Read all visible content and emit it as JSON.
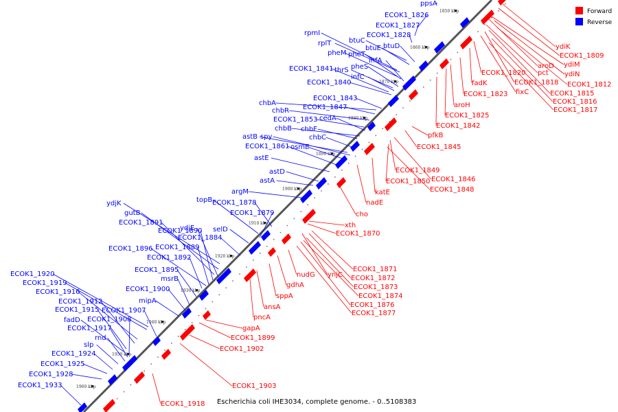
{
  "caption": "Escherichia coli IHE3034, complete genome. - 0..5108383",
  "legend": [
    {
      "label": "Forward",
      "color": "#ff0000"
    },
    {
      "label": "Reverse",
      "color": "#0000ff"
    }
  ],
  "colors": {
    "forward": "#ff0000",
    "reverse": "#0000ff",
    "backbone": "#888888"
  },
  "ticks": [
    "1850 kbp",
    "1860 kbp",
    "1870 kbp",
    "1880 kbp",
    "1890 kbp",
    "1900 kbp",
    "1910 kbp",
    "1920 kbp",
    "1930 kbp",
    "1940 kbp",
    "1950 kbp",
    "1960 kbp"
  ],
  "reverse_genes": [
    "ppsA",
    "ECOK1_1826",
    "ECOK1_1827",
    "ECOK1_1828",
    "btuC",
    "rpmI",
    "rplT",
    "btuE",
    "btuD",
    "pheM",
    "pheT",
    "ihfA",
    "pheS",
    "thrS",
    "ECOK1_1841",
    "infC",
    "ECOK1_1840",
    "chbA",
    "ECOK1_1843",
    "chbR",
    "ECOK1_1847",
    "ECOK1_1853",
    "cedA",
    "chbB",
    "chbF",
    "astB",
    "spy",
    "chbC",
    "ECOK1_1861",
    "osmE",
    "astE",
    "astD",
    "astA",
    "argM",
    "topB",
    "ECOK1_1878",
    "ydjK",
    "ECOK1_1879",
    "gutB",
    "ECOK1_1891",
    "selD",
    "ydjE",
    "ECOK1_1890",
    "ECOK1_1884",
    "ECOK1_1896",
    "ECOK1_1889",
    "ECOK1_1892",
    "ECOK1_1895",
    "ECOK1_1920",
    "msrB",
    "ECOK1_1919",
    "ECOK1_1900",
    "ECOK1_1916",
    "mipA",
    "ECOK1_1912",
    "ECOK1_1915",
    "ECOK1_1907",
    "fadD",
    "ECOK1_1908",
    "ECOK1_1917",
    "rnd",
    "slp",
    "ECOK1_1924",
    "ECOK1_1925",
    "ECOK1_1928",
    "ECOK1_1933"
  ],
  "forward_genes": [
    "ydiK",
    "ECOK1_1809",
    "aroD",
    "ydiM",
    "pct",
    "ydiN",
    "ECOK1_1820",
    "ECOK1_1812",
    "fadK",
    "ECOK1_1818",
    "fixC",
    "ECOK1_1815",
    "ECOK1_1823",
    "ECOK1_1816",
    "ECOK1_1817",
    "aroH",
    "ECOK1_1825",
    "ECOK1_1842",
    "pfkB",
    "ECOK1_1845",
    "ECOK1_1849",
    "ECOK1_1846",
    "ECOK1_1850",
    "ECOK1_1848",
    "katE",
    "nadE",
    "cho",
    "xth",
    "ECOK1_1870",
    "ECOK1_1871",
    "nudG",
    "ynjC",
    "ECOK1_1872",
    "ECOK1_1873",
    "gdhA",
    "ECOK1_1874",
    "sppA",
    "ECOK1_1876",
    "ansA",
    "ECOK1_1877",
    "pncA",
    "gapA",
    "ECOK1_1899",
    "ECOK1_1902",
    "ECOK1_1903",
    "ECOK1_1918"
  ]
}
